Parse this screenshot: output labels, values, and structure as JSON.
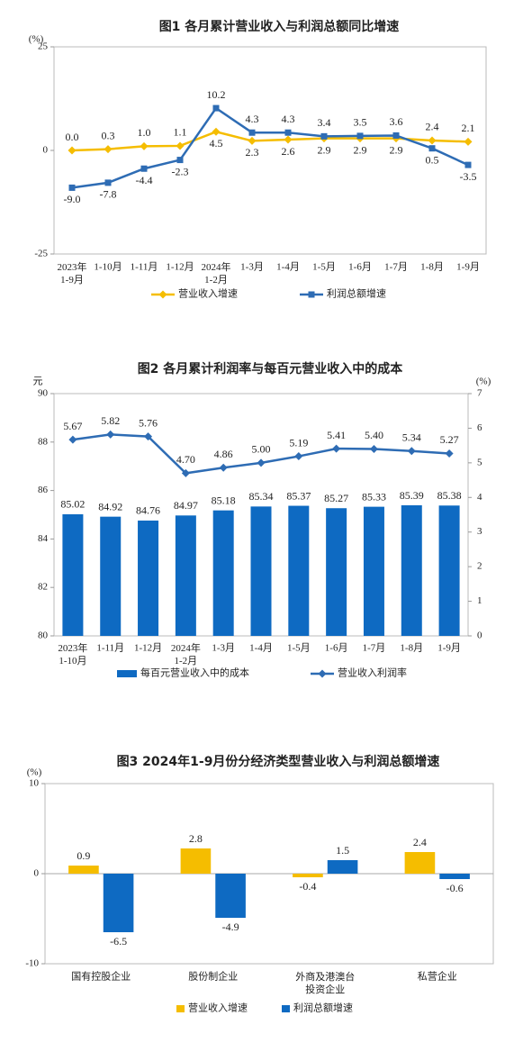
{
  "chart_data": [
    {
      "type": "line",
      "title": "图1 各月累计营业收入与利润总额同比增速",
      "y_unit": "(%)",
      "categories": [
        "2023年\n1-9月",
        "1-10月",
        "1-11月",
        "1-12月",
        "2024年\n1-2月",
        "1-3月",
        "1-4月",
        "1-5月",
        "1-6月",
        "1-7月",
        "1-8月",
        "1-9月"
      ],
      "ylim": [
        -25,
        25
      ],
      "yticks": [
        -25,
        0,
        25
      ],
      "series": [
        {
          "name": "营业收入增速",
          "color": "#f5bd00",
          "marker": "diamond",
          "values": [
            0,
            0.3,
            1,
            1.1,
            4.5,
            2.3,
            2.6,
            2.9,
            2.9,
            2.9,
            2.4,
            2.1
          ],
          "value_labels": [
            "0.0",
            "0.3",
            "1.0",
            "1.1",
            "4.5",
            "2.3",
            "2.6",
            "2.9",
            "2.9",
            "2.9",
            "2.4",
            "2.1"
          ]
        },
        {
          "name": "利润总额增速",
          "color": "#2e6cb4",
          "marker": "square",
          "values": [
            -9,
            -7.8,
            -4.4,
            -2.3,
            10.2,
            4.3,
            4.3,
            3.4,
            3.5,
            3.6,
            0.5,
            -3.5
          ],
          "value_labels": [
            "-9.0",
            "-7.8",
            "-4.4",
            "-2.3",
            "10.2",
            "4.3",
            "4.3",
            "3.4",
            "3.5",
            "3.6",
            "0.5",
            "-3.5"
          ]
        }
      ]
    },
    {
      "type": "bar",
      "title": "图2 各月累计利润率与每百元营业收入中的成本",
      "y_unit": "元",
      "y2_unit": "(%)",
      "categories": [
        "2023年\n1-10月",
        "1-11月",
        "1-12月",
        "2024年\n1-2月",
        "1-3月",
        "1-4月",
        "1-5月",
        "1-6月",
        "1-7月",
        "1-8月",
        "1-9月"
      ],
      "ylim": [
        80,
        90
      ],
      "yticks": [
        80,
        82,
        84,
        86,
        88,
        90
      ],
      "y2lim": [
        0,
        7
      ],
      "y2ticks": [
        0,
        1,
        2,
        3,
        4,
        5,
        6,
        7
      ],
      "series": [
        {
          "name": "每百元营业收入中的成本",
          "type": "bar",
          "color": "#0e6ac2",
          "values": [
            85.02,
            84.92,
            84.76,
            84.97,
            85.18,
            85.34,
            85.37,
            85.27,
            85.33,
            85.39,
            85.38
          ]
        },
        {
          "name": "营业收入利润率",
          "type": "line",
          "axis": "y2",
          "color": "#2e6cb4",
          "marker": "diamond",
          "values": [
            5.67,
            5.82,
            5.76,
            4.7,
            4.86,
            5,
            5.19,
            5.41,
            5.4,
            5.34,
            5.27
          ],
          "value_labels": [
            "5.67",
            "5.82",
            "5.76",
            "4.70",
            "4.86",
            "5.00",
            "5.19",
            "5.41",
            "5.40",
            "5.34",
            "5.27"
          ]
        }
      ]
    },
    {
      "type": "bar",
      "title": "图3 2024年1-9月份分经济类型营业收入与利润总额增速",
      "y_unit": "(%)",
      "categories": [
        "国有控股企业",
        "股份制企业",
        "外商及港澳台\n投资企业",
        "私营企业"
      ],
      "ylim": [
        -10,
        10
      ],
      "yticks": [
        -10,
        0,
        10
      ],
      "series": [
        {
          "name": "营业收入增速",
          "color": "#f5bd00",
          "values": [
            0.9,
            2.8,
            -0.4,
            2.4
          ]
        },
        {
          "name": "利润总额增速",
          "color": "#0e6ac2",
          "values": [
            -6.5,
            -4.9,
            1.5,
            -0.6
          ]
        }
      ]
    }
  ]
}
